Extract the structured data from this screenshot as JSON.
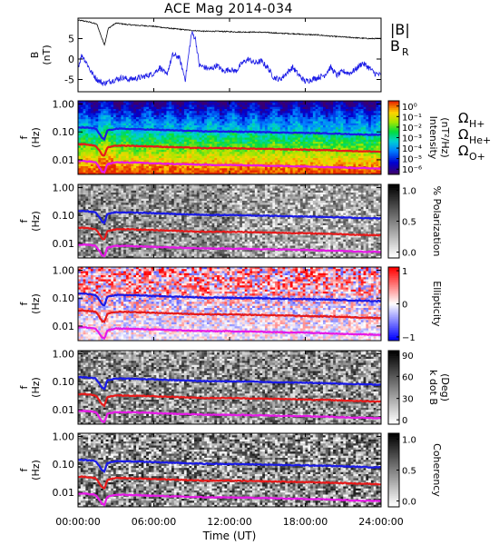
{
  "title": "ACE Mag 2014-034",
  "colors": {
    "b_mag": "#000000",
    "b_r": "#1a1ae6",
    "h_plus": "#1a1ae6",
    "he_plus": "#e61a1a",
    "o_plus": "#e61ae6"
  },
  "chart_data": [
    {
      "panel": "magnetic-field",
      "type": "line",
      "ylabel_top": "B",
      "ylabel_bottom": "(nT)",
      "ylim": [
        -8,
        10
      ],
      "yticks": [
        "5",
        "0",
        "-5"
      ],
      "ytick_values": [
        5,
        0,
        -5
      ],
      "xlim_hours": [
        0,
        24
      ],
      "series": [
        {
          "name": "|B|",
          "color": "#000000",
          "x_hours": [
            0,
            0.5,
            1.0,
            1.5,
            1.9,
            2.1,
            2.4,
            3.0,
            4.0,
            5.0,
            6.0,
            7.0,
            8.0,
            9.0,
            10.0,
            11.0,
            12.0,
            13.0,
            14.0,
            15.0,
            16.0,
            17.0,
            18.0,
            19.0,
            20.0,
            21.0,
            22.0,
            23.0,
            24.0
          ],
          "values": [
            9.5,
            9.3,
            9.0,
            8.5,
            5.0,
            3.5,
            7.5,
            8.8,
            8.4,
            8.2,
            8.0,
            7.6,
            7.3,
            7.0,
            6.8,
            6.8,
            6.7,
            6.6,
            6.6,
            6.5,
            6.3,
            6.2,
            6.0,
            5.9,
            5.6,
            5.4,
            5.2,
            5.0,
            5.0
          ]
        },
        {
          "name": "B",
          "name_subscript": "R",
          "color": "#1a1ae6",
          "x_hours": [
            0,
            0.3,
            0.7,
            1.0,
            1.5,
            2.0,
            2.5,
            3.0,
            3.5,
            4.0,
            5.0,
            6.0,
            6.5,
            7.0,
            7.5,
            8.0,
            8.5,
            9.0,
            9.3,
            9.6,
            10.0,
            10.5,
            11.0,
            11.5,
            12.0,
            12.5,
            13.0,
            13.5,
            14.0,
            14.5,
            15.0,
            15.5,
            16.0,
            16.5,
            17.0,
            17.5,
            18.0,
            18.5,
            19.0,
            19.5,
            20.0,
            20.5,
            21.0,
            21.5,
            22.0,
            22.5,
            23.0,
            23.5,
            24.0
          ],
          "values": [
            -2.0,
            1.0,
            -1.0,
            -3.0,
            -5.0,
            -6.0,
            -5.5,
            -5.0,
            -4.5,
            -5.0,
            -4.5,
            -3.5,
            -2.0,
            -4.0,
            1.0,
            0.5,
            -5.0,
            6.5,
            5.0,
            -1.5,
            -2.0,
            -2.5,
            -1.5,
            -3.0,
            -2.5,
            -3.0,
            -1.0,
            0.0,
            -1.0,
            -0.5,
            -2.0,
            -4.5,
            -5.0,
            -3.5,
            -2.0,
            -4.0,
            -5.5,
            -5.0,
            -4.5,
            -4.0,
            -2.0,
            -4.0,
            -3.0,
            -3.5,
            -2.5,
            -1.0,
            -2.0,
            -3.5,
            -4.0
          ]
        }
      ]
    },
    {
      "panel": "intensity",
      "type": "heatmap",
      "ylabel_top": "f",
      "ylabel_bottom": "(Hz)",
      "yticks": [
        "1.00",
        "0.10",
        "0.01"
      ],
      "colorbar": {
        "label": "Intensity",
        "units": "(nT²/Hz)",
        "ticks": [
          "10⁰",
          "10⁻¹",
          "10⁻²",
          "10⁻³",
          "10⁻⁴",
          "10⁻⁵",
          "10⁻⁶"
        ],
        "scale": "log",
        "range": [
          -6.5,
          0.5
        ]
      },
      "legend": [
        {
          "base": "Ω",
          "sub": "H+",
          "color": "#1a1ae6"
        },
        {
          "base": "Ω",
          "sub": "He+",
          "color": "#e61a1a"
        },
        {
          "base": "Ω",
          "sub": "O+",
          "color": "#e61ae6"
        }
      ]
    },
    {
      "panel": "polarization",
      "type": "heatmap",
      "ylabel_top": "f",
      "ylabel_bottom": "(Hz)",
      "yticks": [
        "1.00",
        "0.10",
        "0.01"
      ],
      "colorbar": {
        "label": "% Polarization",
        "ticks": [
          "1.0",
          "0.5",
          "0.0"
        ],
        "range": [
          0,
          1
        ]
      }
    },
    {
      "panel": "ellipticity",
      "type": "heatmap",
      "ylabel_top": "f",
      "ylabel_bottom": "(Hz)",
      "yticks": [
        "1.00",
        "0.10",
        "0.01"
      ],
      "colorbar": {
        "label": "Ellipticity",
        "ticks": [
          "1",
          "0",
          "−1"
        ],
        "range": [
          -1,
          1
        ]
      }
    },
    {
      "panel": "k-dot-b",
      "type": "heatmap",
      "ylabel_top": "f",
      "ylabel_bottom": "(Hz)",
      "yticks": [
        "1.00",
        "0.10",
        "0.01"
      ],
      "colorbar": {
        "label": "k dot B",
        "units": "(Deg)",
        "ticks": [
          "90",
          "60",
          "30",
          "0"
        ],
        "range": [
          0,
          90
        ]
      }
    },
    {
      "panel": "coherency",
      "type": "heatmap",
      "ylabel_top": "f",
      "ylabel_bottom": "(Hz)",
      "yticks": [
        "1.00",
        "0.10",
        "0.01"
      ],
      "colorbar": {
        "label": "Coherency",
        "ticks": [
          "1.0",
          "0.5",
          "0.0"
        ],
        "range": [
          0,
          1
        ]
      }
    }
  ],
  "gyrofrequencies": {
    "x_hours": [
      0,
      0.5,
      1.0,
      1.4,
      1.7,
      1.9,
      2.1,
      2.3,
      2.6,
      3.0,
      4.0,
      5.0,
      6.0,
      8.0,
      10.0,
      12.0,
      14.0,
      16.0,
      18.0,
      20.0,
      22.0,
      24.0
    ],
    "h_plus_hz": [
      0.145,
      0.143,
      0.138,
      0.13,
      0.085,
      0.06,
      0.055,
      0.11,
      0.12,
      0.13,
      0.128,
      0.125,
      0.12,
      0.112,
      0.105,
      0.103,
      0.1,
      0.095,
      0.092,
      0.088,
      0.082,
      0.078
    ],
    "he_plus_hz": [
      0.036,
      0.036,
      0.034,
      0.032,
      0.021,
      0.015,
      0.014,
      0.027,
      0.03,
      0.032,
      0.032,
      0.031,
      0.03,
      0.028,
      0.026,
      0.026,
      0.025,
      0.024,
      0.023,
      0.022,
      0.0205,
      0.0195
    ],
    "o_plus_hz": [
      0.009,
      0.009,
      0.0086,
      0.0081,
      0.0053,
      0.0038,
      0.0035,
      0.0069,
      0.0075,
      0.0081,
      0.008,
      0.0078,
      0.0075,
      0.007,
      0.0066,
      0.0065,
      0.0063,
      0.006,
      0.0058,
      0.0055,
      0.0051,
      0.0049
    ]
  },
  "xaxis": {
    "ticks": [
      "00:00:00",
      "06:00:00",
      "12:00:00",
      "18:00:00",
      "24:00:00"
    ],
    "tick_hours": [
      0,
      6,
      12,
      18,
      24
    ],
    "label": "Time (UT)"
  }
}
